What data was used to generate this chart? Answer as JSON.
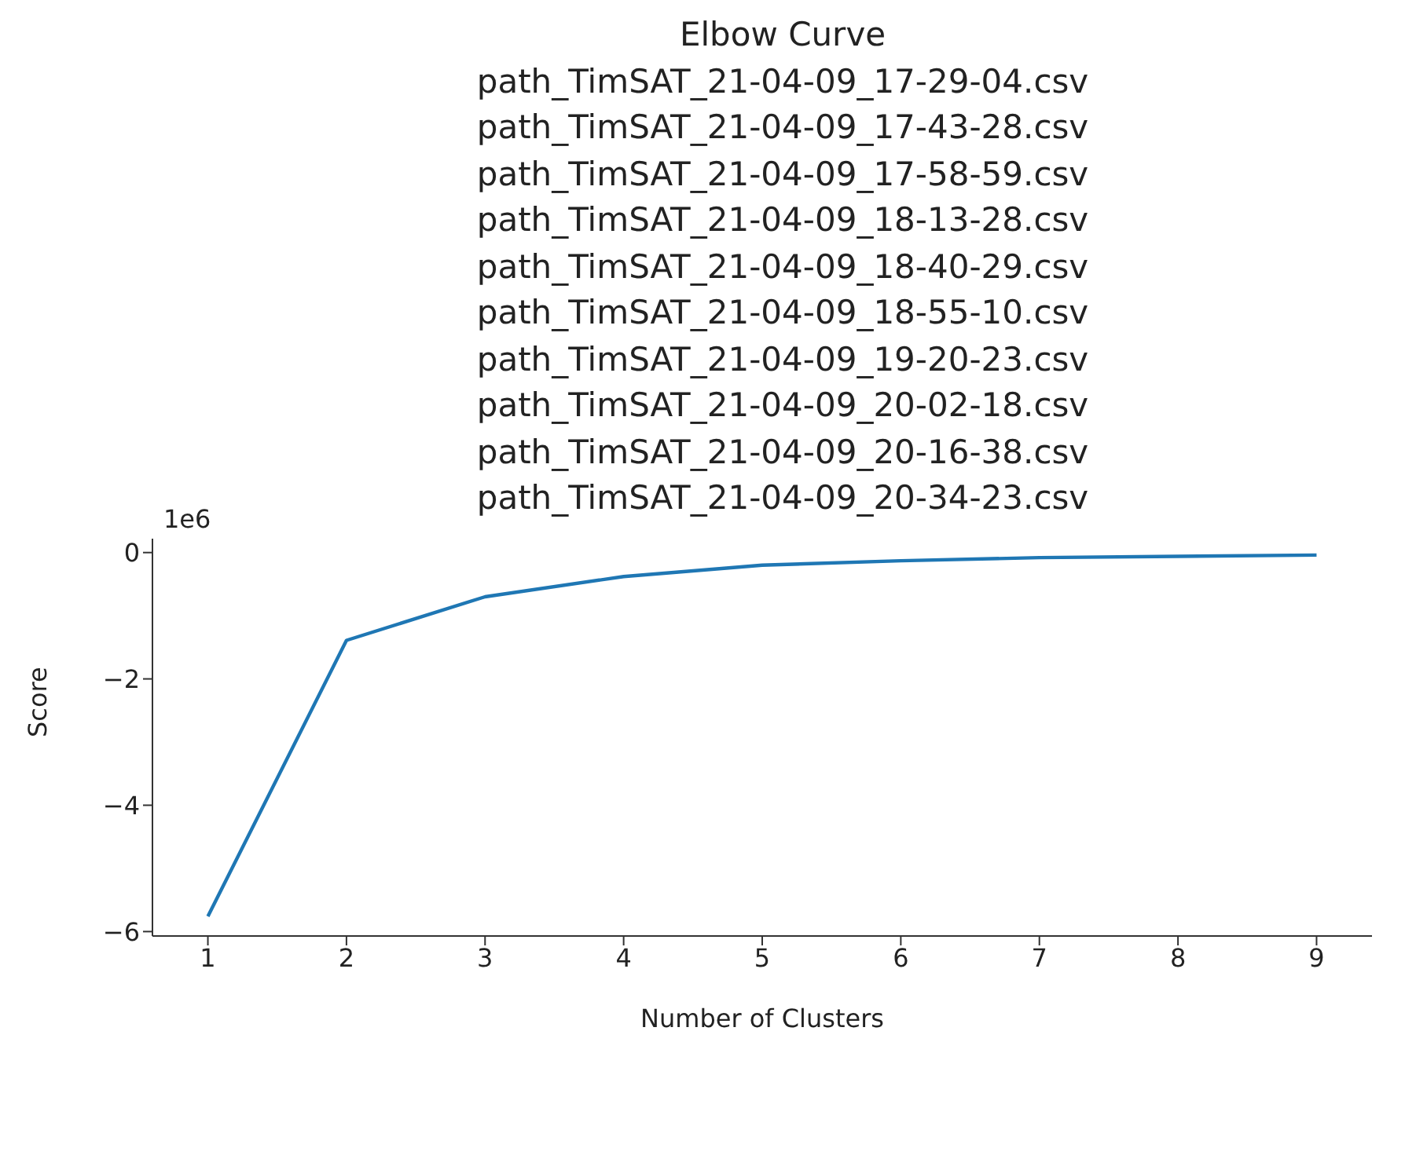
{
  "chart_data": {
    "type": "line",
    "title": "Elbow Curve\npath_TimSAT_21-04-09_17-29-04.csv\npath_TimSAT_21-04-09_17-43-28.csv\npath_TimSAT_21-04-09_17-58-59.csv\npath_TimSAT_21-04-09_18-13-28.csv\npath_TimSAT_21-04-09_18-40-29.csv\npath_TimSAT_21-04-09_18-55-10.csv\npath_TimSAT_21-04-09_19-20-23.csv\npath_TimSAT_21-04-09_20-02-18.csv\npath_TimSAT_21-04-09_20-16-38.csv\npath_TimSAT_21-04-09_20-34-23.csv",
    "xlabel": "Number of Clusters",
    "ylabel": "Score",
    "annotations": [
      "1e6"
    ],
    "x": [
      1,
      2,
      3,
      4,
      5,
      6,
      7,
      8,
      9
    ],
    "series": [
      {
        "color": "#1f77b4",
        "values": [
          -5.76,
          -1.39,
          -0.7,
          -0.38,
          -0.2,
          -0.13,
          -0.08,
          -0.06,
          -0.04
        ]
      }
    ],
    "xlim": [
      0.6,
      9.4
    ],
    "xticks": [
      1,
      2,
      3,
      4,
      5,
      6,
      7,
      8,
      9
    ],
    "ylim": [
      -6.07,
      0.22
    ],
    "yticks": [
      -6,
      -4,
      -2,
      0
    ],
    "grid": false,
    "legend": false,
    "marker": "none",
    "line_style": "solid"
  }
}
